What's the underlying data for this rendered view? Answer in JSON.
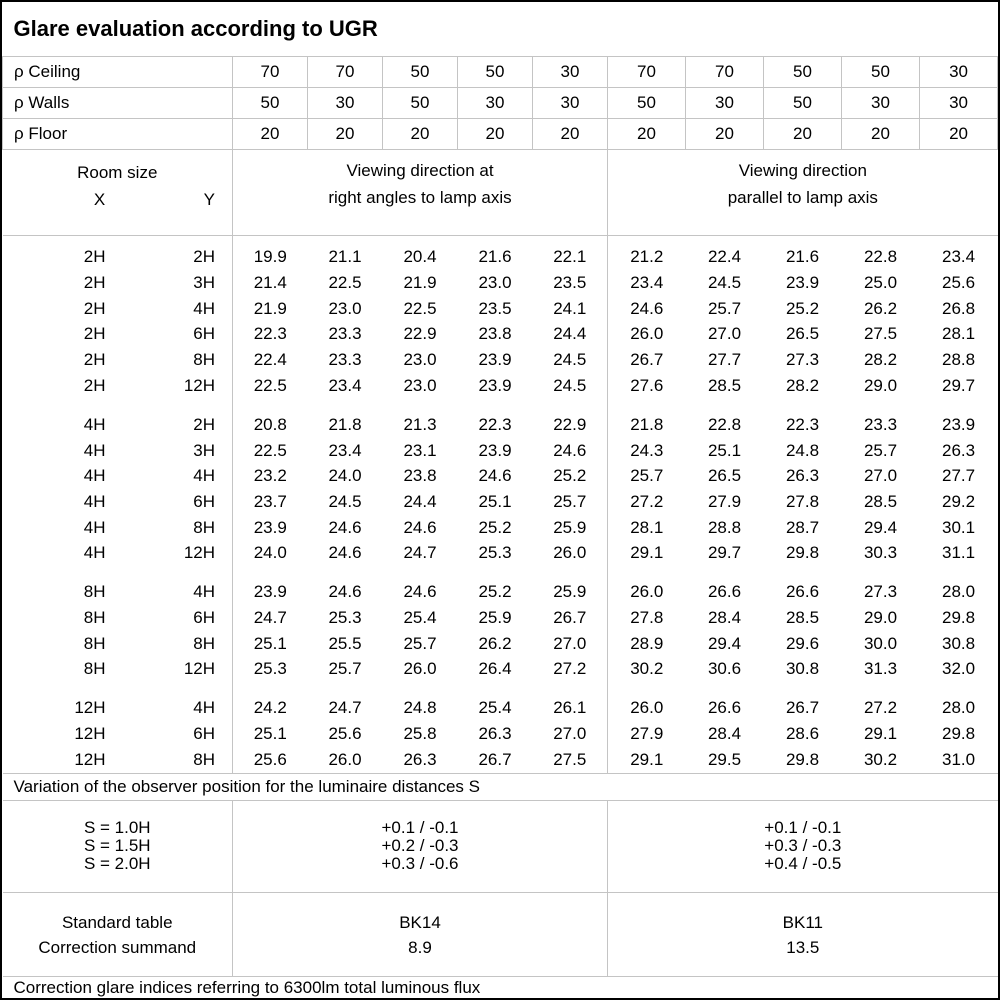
{
  "title": "Glare evaluation according to UGR",
  "colors": {
    "background": "#ffffff",
    "text": "#000000",
    "grid_line": "#c4c4c4",
    "outer_border": "#000000"
  },
  "reflectance": {
    "rows": [
      {
        "label": "ρ Ceiling",
        "values": [
          "70",
          "70",
          "50",
          "50",
          "30",
          "70",
          "70",
          "50",
          "50",
          "30"
        ]
      },
      {
        "label": "ρ Walls",
        "values": [
          "50",
          "30",
          "50",
          "30",
          "30",
          "50",
          "30",
          "50",
          "30",
          "30"
        ]
      },
      {
        "label": "ρ Floor",
        "values": [
          "20",
          "20",
          "20",
          "20",
          "20",
          "20",
          "20",
          "20",
          "20",
          "20"
        ]
      }
    ]
  },
  "header": {
    "room_size_label": "Room size",
    "x_label": "X",
    "y_label": "Y",
    "right_angles_line1": "Viewing direction at",
    "right_angles_line2": "right angles to lamp axis",
    "parallel_line1": "Viewing direction",
    "parallel_line2": "parallel to lamp axis"
  },
  "ugr_groups": [
    [
      {
        "x": "2H",
        "y": "2H",
        "right_angles": [
          "19.9",
          "21.1",
          "20.4",
          "21.6",
          "22.1"
        ],
        "parallel": [
          "21.2",
          "22.4",
          "21.6",
          "22.8",
          "23.4"
        ]
      },
      {
        "x": "2H",
        "y": "3H",
        "right_angles": [
          "21.4",
          "22.5",
          "21.9",
          "23.0",
          "23.5"
        ],
        "parallel": [
          "23.4",
          "24.5",
          "23.9",
          "25.0",
          "25.6"
        ]
      },
      {
        "x": "2H",
        "y": "4H",
        "right_angles": [
          "21.9",
          "23.0",
          "22.5",
          "23.5",
          "24.1"
        ],
        "parallel": [
          "24.6",
          "25.7",
          "25.2",
          "26.2",
          "26.8"
        ]
      },
      {
        "x": "2H",
        "y": "6H",
        "right_angles": [
          "22.3",
          "23.3",
          "22.9",
          "23.8",
          "24.4"
        ],
        "parallel": [
          "26.0",
          "27.0",
          "26.5",
          "27.5",
          "28.1"
        ]
      },
      {
        "x": "2H",
        "y": "8H",
        "right_angles": [
          "22.4",
          "23.3",
          "23.0",
          "23.9",
          "24.5"
        ],
        "parallel": [
          "26.7",
          "27.7",
          "27.3",
          "28.2",
          "28.8"
        ]
      },
      {
        "x": "2H",
        "y": "12H",
        "right_angles": [
          "22.5",
          "23.4",
          "23.0",
          "23.9",
          "24.5"
        ],
        "parallel": [
          "27.6",
          "28.5",
          "28.2",
          "29.0",
          "29.7"
        ]
      }
    ],
    [
      {
        "x": "4H",
        "y": "2H",
        "right_angles": [
          "20.8",
          "21.8",
          "21.3",
          "22.3",
          "22.9"
        ],
        "parallel": [
          "21.8",
          "22.8",
          "22.3",
          "23.3",
          "23.9"
        ]
      },
      {
        "x": "4H",
        "y": "3H",
        "right_angles": [
          "22.5",
          "23.4",
          "23.1",
          "23.9",
          "24.6"
        ],
        "parallel": [
          "24.3",
          "25.1",
          "24.8",
          "25.7",
          "26.3"
        ]
      },
      {
        "x": "4H",
        "y": "4H",
        "right_angles": [
          "23.2",
          "24.0",
          "23.8",
          "24.6",
          "25.2"
        ],
        "parallel": [
          "25.7",
          "26.5",
          "26.3",
          "27.0",
          "27.7"
        ]
      },
      {
        "x": "4H",
        "y": "6H",
        "right_angles": [
          "23.7",
          "24.5",
          "24.4",
          "25.1",
          "25.7"
        ],
        "parallel": [
          "27.2",
          "27.9",
          "27.8",
          "28.5",
          "29.2"
        ]
      },
      {
        "x": "4H",
        "y": "8H",
        "right_angles": [
          "23.9",
          "24.6",
          "24.6",
          "25.2",
          "25.9"
        ],
        "parallel": [
          "28.1",
          "28.8",
          "28.7",
          "29.4",
          "30.1"
        ]
      },
      {
        "x": "4H",
        "y": "12H",
        "right_angles": [
          "24.0",
          "24.6",
          "24.7",
          "25.3",
          "26.0"
        ],
        "parallel": [
          "29.1",
          "29.7",
          "29.8",
          "30.3",
          "31.1"
        ]
      }
    ],
    [
      {
        "x": "8H",
        "y": "4H",
        "right_angles": [
          "23.9",
          "24.6",
          "24.6",
          "25.2",
          "25.9"
        ],
        "parallel": [
          "26.0",
          "26.6",
          "26.6",
          "27.3",
          "28.0"
        ]
      },
      {
        "x": "8H",
        "y": "6H",
        "right_angles": [
          "24.7",
          "25.3",
          "25.4",
          "25.9",
          "26.7"
        ],
        "parallel": [
          "27.8",
          "28.4",
          "28.5",
          "29.0",
          "29.8"
        ]
      },
      {
        "x": "8H",
        "y": "8H",
        "right_angles": [
          "25.1",
          "25.5",
          "25.7",
          "26.2",
          "27.0"
        ],
        "parallel": [
          "28.9",
          "29.4",
          "29.6",
          "30.0",
          "30.8"
        ]
      },
      {
        "x": "8H",
        "y": "12H",
        "right_angles": [
          "25.3",
          "25.7",
          "26.0",
          "26.4",
          "27.2"
        ],
        "parallel": [
          "30.2",
          "30.6",
          "30.8",
          "31.3",
          "32.0"
        ]
      }
    ],
    [
      {
        "x": "12H",
        "y": "4H",
        "right_angles": [
          "24.2",
          "24.7",
          "24.8",
          "25.4",
          "26.1"
        ],
        "parallel": [
          "26.0",
          "26.6",
          "26.7",
          "27.2",
          "28.0"
        ]
      },
      {
        "x": "12H",
        "y": "6H",
        "right_angles": [
          "25.1",
          "25.6",
          "25.8",
          "26.3",
          "27.0"
        ],
        "parallel": [
          "27.9",
          "28.4",
          "28.6",
          "29.1",
          "29.8"
        ]
      },
      {
        "x": "12H",
        "y": "8H",
        "right_angles": [
          "25.6",
          "26.0",
          "26.3",
          "26.7",
          "27.5"
        ],
        "parallel": [
          "29.1",
          "29.5",
          "29.8",
          "30.2",
          "31.0"
        ]
      }
    ]
  ],
  "s_variation": {
    "heading": "Variation of the observer position for the luminaire distances S",
    "rows": [
      {
        "label": "S = 1.0H",
        "right_angles": "+0.1 / -0.1",
        "parallel": "+0.1 / -0.1"
      },
      {
        "label": "S = 1.5H",
        "right_angles": "+0.2 / -0.3",
        "parallel": "+0.3 / -0.3"
      },
      {
        "label": "S = 2.0H",
        "right_angles": "+0.3 / -0.6",
        "parallel": "+0.4 / -0.5"
      }
    ]
  },
  "standard": {
    "rows": [
      {
        "label": "Standard table",
        "right_angles": "BK14",
        "parallel": "BK11"
      },
      {
        "label": "Correction summand",
        "right_angles": "8.9",
        "parallel": "13.5"
      }
    ]
  },
  "footer": "Correction glare indices referring to 6300lm total luminous flux"
}
